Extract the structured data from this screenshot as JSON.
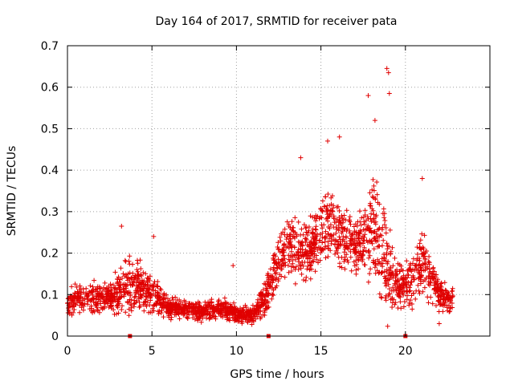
{
  "chart_data": {
    "type": "scatter",
    "title": "Day 164 of 2017, SRMTID for receiver pata",
    "xlabel": "GPS time / hours",
    "ylabel": "SRMTID / TECUs",
    "xlim": [
      0,
      25
    ],
    "ylim": [
      0,
      0.7
    ],
    "xticks": [
      0,
      5,
      10,
      15,
      20
    ],
    "xtick_labels": [
      "0",
      "5",
      "10",
      "15",
      "20"
    ],
    "yticks": [
      0,
      0.1,
      0.2,
      0.3,
      0.4,
      0.5,
      0.6,
      0.7
    ],
    "ytick_labels": [
      "0",
      "0.1",
      "0.2",
      "0.3",
      "0.4",
      "0.5",
      "0.6",
      "0.7"
    ],
    "grid": true,
    "marker": "+",
    "colors": {
      "points": "#e00000",
      "grid": "#a0a0a0",
      "axes": "#000000"
    },
    "x_range_of_data": [
      0,
      22.8
    ],
    "gap_markers_x": [
      3.7,
      11.9,
      20.0
    ],
    "envelope": {
      "x": [
        0,
        1,
        2,
        3,
        3.5,
        4,
        5,
        6,
        7,
        8,
        9,
        10,
        11,
        11.8,
        12.5,
        13,
        13.5,
        14,
        15,
        15.5,
        16,
        17,
        18,
        18.5,
        19,
        19.5,
        20,
        20.5,
        21,
        21.5,
        22,
        22.8
      ],
      "mean": [
        0.085,
        0.095,
        0.09,
        0.1,
        0.13,
        0.12,
        0.1,
        0.07,
        0.065,
        0.06,
        0.065,
        0.055,
        0.05,
        0.1,
        0.18,
        0.22,
        0.21,
        0.19,
        0.24,
        0.27,
        0.25,
        0.22,
        0.25,
        0.2,
        0.15,
        0.12,
        0.12,
        0.14,
        0.18,
        0.14,
        0.1,
        0.08
      ],
      "spread": [
        0.04,
        0.04,
        0.04,
        0.05,
        0.08,
        0.07,
        0.05,
        0.03,
        0.025,
        0.025,
        0.03,
        0.025,
        0.025,
        0.06,
        0.07,
        0.08,
        0.08,
        0.08,
        0.1,
        0.1,
        0.09,
        0.08,
        0.12,
        0.18,
        0.12,
        0.06,
        0.06,
        0.07,
        0.1,
        0.06,
        0.04,
        0.04
      ]
    },
    "notable_points": [
      {
        "x": 3.2,
        "y": 0.265
      },
      {
        "x": 5.1,
        "y": 0.24
      },
      {
        "x": 9.8,
        "y": 0.17
      },
      {
        "x": 13.8,
        "y": 0.43
      },
      {
        "x": 15.4,
        "y": 0.47
      },
      {
        "x": 16.1,
        "y": 0.48
      },
      {
        "x": 17.8,
        "y": 0.58
      },
      {
        "x": 18.2,
        "y": 0.52
      },
      {
        "x": 18.9,
        "y": 0.645
      },
      {
        "x": 19.0,
        "y": 0.635
      },
      {
        "x": 19.05,
        "y": 0.585
      },
      {
        "x": 21.0,
        "y": 0.38
      },
      {
        "x": 20.4,
        "y": 0.065
      },
      {
        "x": 22.0,
        "y": 0.03
      }
    ]
  }
}
